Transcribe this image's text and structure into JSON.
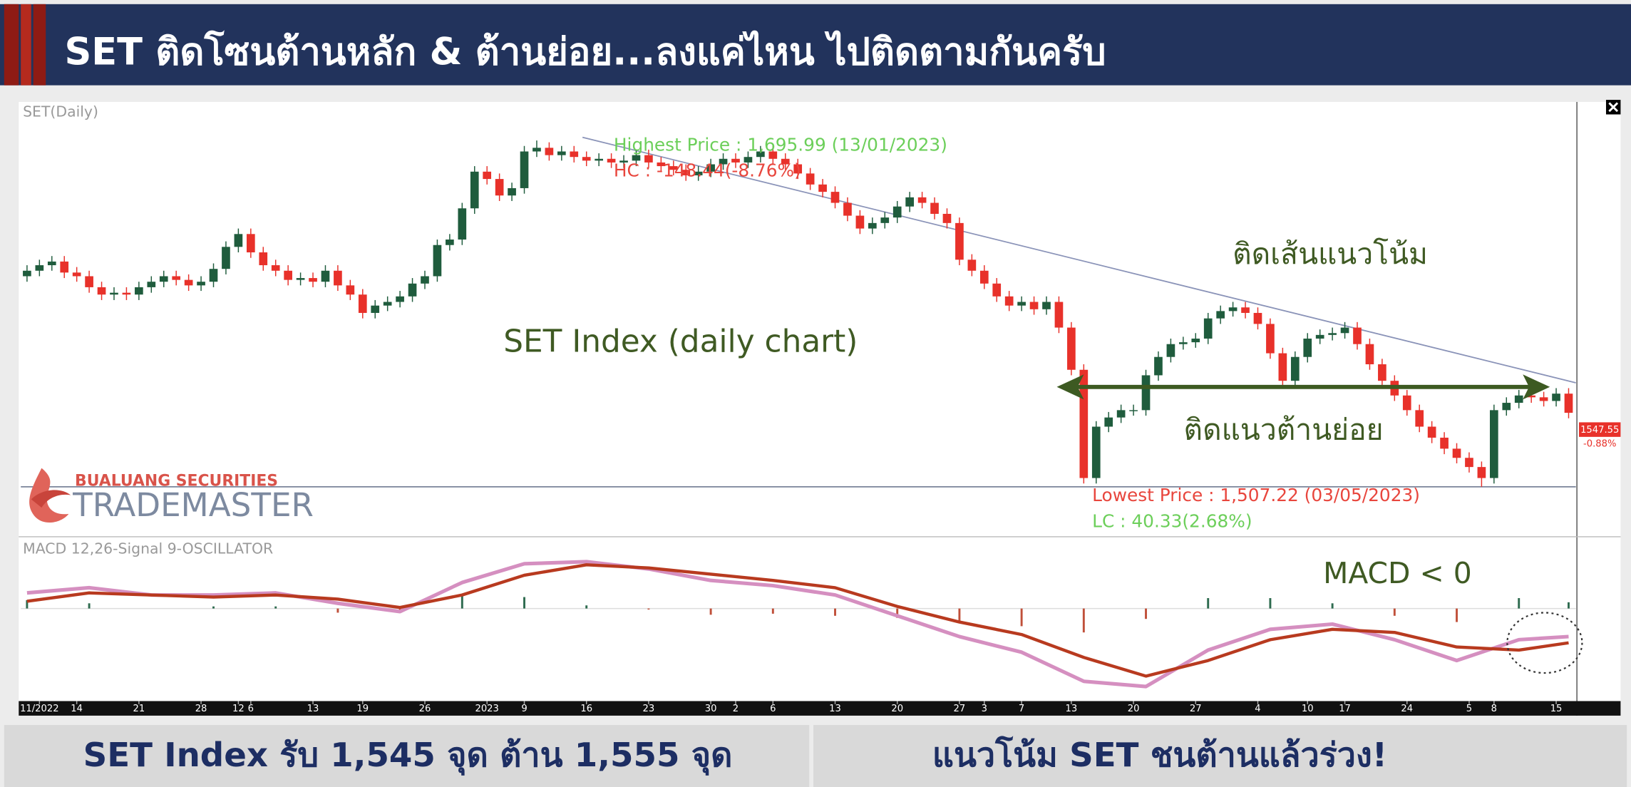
{
  "header": {
    "title": "SET ติดโซนต้านหลัก & ต้านย่อย...ลงแค่ไหน ไปติดตามกันครับ"
  },
  "logo": {
    "company": "BUALUANG SECURITIES",
    "brand": "TRADEMASTER"
  },
  "footer": {
    "left": "SET Index รับ 1,545 จุด ต้าน 1,555 จุด",
    "right": "แนวโน้ม SET ชนต้านแล้วร่วง!"
  },
  "chart_data": [
    {
      "type": "candlestick",
      "title": "SET(Daily)",
      "annotations": [
        "Highest Price : 1,695.99 (13/01/2023)",
        "HC : -148.44(-8.76%)",
        "Lowest Price : 1,507.22 (03/05/2023)",
        "LC : 40.33(2.68%)",
        "ติดเส้นแนวโน้ม",
        "SET Index (daily chart)",
        "ติดแนวต้านย่อย",
        "-0.88%"
      ],
      "last_price": 1547.55,
      "up_color": "#1f5c3d",
      "down_color": "#e8312a",
      "xlim": [
        -0.5,
        124.5
      ],
      "ylim": [
        1480,
        1717
      ],
      "xticks": [
        {
          "value": 1,
          "label": "11/2022"
        },
        {
          "value": 4,
          "label": "14"
        },
        {
          "value": 9,
          "label": "21"
        },
        {
          "value": 14,
          "label": "28"
        },
        {
          "value": 17,
          "label": "12"
        },
        {
          "value": 18,
          "label": "6"
        },
        {
          "value": 23,
          "label": "13"
        },
        {
          "value": 27,
          "label": "19"
        },
        {
          "value": 32,
          "label": "26"
        },
        {
          "value": 37,
          "label": "2023"
        },
        {
          "value": 40,
          "label": "9"
        },
        {
          "value": 45,
          "label": "16"
        },
        {
          "value": 50,
          "label": "23"
        },
        {
          "value": 55,
          "label": "30"
        },
        {
          "value": 57,
          "label": "2"
        },
        {
          "value": 60,
          "label": "6"
        },
        {
          "value": 65,
          "label": "13"
        },
        {
          "value": 70,
          "label": "20"
        },
        {
          "value": 75,
          "label": "27"
        },
        {
          "value": 77,
          "label": "3"
        },
        {
          "value": 80,
          "label": "7"
        },
        {
          "value": 84,
          "label": "13"
        },
        {
          "value": 89,
          "label": "20"
        },
        {
          "value": 94,
          "label": "27"
        },
        {
          "value": 99,
          "label": "4"
        },
        {
          "value": 103,
          "label": "10"
        },
        {
          "value": 106,
          "label": "17"
        },
        {
          "value": 111,
          "label": "24"
        },
        {
          "value": 116,
          "label": "5"
        },
        {
          "value": 118,
          "label": "8"
        },
        {
          "value": 123,
          "label": "15"
        }
      ],
      "open": [
        1622,
        1625,
        1628,
        1630,
        1624,
        1622,
        1616,
        1612,
        1613,
        1612,
        1616,
        1619,
        1622,
        1620,
        1617,
        1619,
        1626,
        1638,
        1645,
        1635,
        1628,
        1625,
        1620,
        1621,
        1619,
        1625,
        1617,
        1612,
        1602,
        1606,
        1608,
        1611,
        1618,
        1622,
        1639,
        1642,
        1659,
        1679,
        1675,
        1666,
        1670,
        1690,
        1692,
        1688,
        1690,
        1687,
        1685,
        1686,
        1684,
        1685,
        1688,
        1684,
        1682,
        1680,
        1677,
        1679,
        1683,
        1686,
        1684,
        1687,
        1690,
        1686,
        1683,
        1678,
        1672,
        1668,
        1662,
        1655,
        1648,
        1651,
        1654,
        1660,
        1665,
        1662,
        1656,
        1651,
        1631,
        1625,
        1618,
        1611,
        1606,
        1608,
        1604,
        1608,
        1594,
        1571,
        1512,
        1540,
        1545,
        1549,
        1549,
        1568,
        1578,
        1585,
        1586,
        1588,
        1599,
        1603,
        1605,
        1602,
        1596,
        1580,
        1565,
        1578,
        1588,
        1590,
        1591,
        1594,
        1585,
        1574,
        1565,
        1557,
        1549,
        1540,
        1534,
        1528,
        1523,
        1518,
        1512,
        1549,
        1553,
        1557,
        1556,
        1554,
        1558
      ],
      "high": [
        1628,
        1631,
        1633,
        1633,
        1627,
        1625,
        1619,
        1616,
        1616,
        1619,
        1622,
        1625,
        1625,
        1623,
        1622,
        1629,
        1641,
        1648,
        1648,
        1638,
        1631,
        1628,
        1624,
        1624,
        1628,
        1628,
        1620,
        1615,
        1609,
        1611,
        1614,
        1621,
        1625,
        1642,
        1645,
        1662,
        1682,
        1682,
        1678,
        1673,
        1693,
        1695.99,
        1695,
        1693,
        1693,
        1690,
        1689,
        1689,
        1688,
        1691,
        1691,
        1687,
        1685,
        1683,
        1682,
        1686,
        1689,
        1689,
        1690,
        1693,
        1693,
        1689,
        1686,
        1681,
        1675,
        1671,
        1665,
        1658,
        1654,
        1657,
        1663,
        1668,
        1668,
        1665,
        1659,
        1654,
        1634,
        1628,
        1621,
        1614,
        1611,
        1611,
        1611,
        1611,
        1597,
        1574,
        1543,
        1548,
        1552,
        1552,
        1571,
        1581,
        1588,
        1589,
        1591,
        1602,
        1606,
        1608,
        1608,
        1605,
        1599,
        1583,
        1581,
        1591,
        1593,
        1594,
        1597,
        1597,
        1588,
        1577,
        1568,
        1560,
        1552,
        1543,
        1537,
        1531,
        1526,
        1521,
        1552,
        1556,
        1560,
        1560,
        1559,
        1561,
        1561
      ],
      "low": [
        1619,
        1622,
        1625,
        1621,
        1619,
        1613,
        1609,
        1609,
        1609,
        1609,
        1613,
        1616,
        1617,
        1614,
        1614,
        1616,
        1623,
        1635,
        1632,
        1625,
        1622,
        1617,
        1617,
        1616,
        1616,
        1614,
        1609,
        1599,
        1599,
        1603,
        1605,
        1608,
        1615,
        1619,
        1636,
        1639,
        1656,
        1672,
        1663,
        1663,
        1667,
        1687,
        1685,
        1685,
        1684,
        1682,
        1682,
        1681,
        1681,
        1682,
        1681,
        1679,
        1677,
        1674,
        1674,
        1676,
        1680,
        1681,
        1681,
        1684,
        1683,
        1680,
        1675,
        1669,
        1665,
        1659,
        1652,
        1645,
        1645,
        1648,
        1651,
        1657,
        1659,
        1653,
        1648,
        1628,
        1622,
        1615,
        1608,
        1603,
        1603,
        1601,
        1601,
        1591,
        1568,
        1509,
        1509,
        1537,
        1542,
        1546,
        1546,
        1565,
        1575,
        1582,
        1583,
        1585,
        1596,
        1600,
        1599,
        1593,
        1577,
        1562,
        1562,
        1575,
        1585,
        1587,
        1588,
        1582,
        1571,
        1562,
        1554,
        1546,
        1537,
        1531,
        1525,
        1520,
        1515,
        1507.22,
        1509,
        1546,
        1550,
        1553,
        1551,
        1551,
        1544.55
      ],
      "close": [
        1625,
        1628,
        1630,
        1624,
        1622,
        1616,
        1612,
        1613,
        1612,
        1616,
        1619,
        1622,
        1620,
        1617,
        1619,
        1626,
        1638,
        1645,
        1635,
        1628,
        1625,
        1620,
        1621,
        1619,
        1625,
        1617,
        1612,
        1602,
        1606,
        1608,
        1611,
        1618,
        1622,
        1639,
        1642,
        1659,
        1679,
        1675,
        1666,
        1670,
        1690,
        1692,
        1688,
        1690,
        1687,
        1685,
        1686,
        1684,
        1685,
        1688,
        1684,
        1682,
        1680,
        1677,
        1679,
        1683,
        1686,
        1684,
        1687,
        1690,
        1686,
        1683,
        1678,
        1672,
        1668,
        1662,
        1655,
        1648,
        1651,
        1654,
        1660,
        1665,
        1662,
        1656,
        1651,
        1631,
        1625,
        1618,
        1611,
        1606,
        1608,
        1604,
        1608,
        1594,
        1571,
        1512,
        1540,
        1545,
        1549,
        1549,
        1568,
        1578,
        1585,
        1586,
        1588,
        1599,
        1603,
        1605,
        1602,
        1596,
        1580,
        1565,
        1578,
        1588,
        1590,
        1591,
        1594,
        1585,
        1574,
        1565,
        1557,
        1549,
        1540,
        1534,
        1528,
        1523,
        1518,
        1512,
        1549,
        1553,
        1557,
        1556,
        1554,
        1558,
        1547.55
      ]
    },
    {
      "type": "line",
      "title": "MACD 12,26-Signal 9-OSCILLATOR",
      "annotations": [
        "MACD < 0"
      ],
      "xlim": [
        -0.5,
        124.5
      ],
      "ylim": [
        -17.4,
        13
      ],
      "x": [
        0,
        5,
        10,
        15,
        20,
        25,
        30,
        35,
        40,
        45,
        50,
        55,
        60,
        65,
        70,
        75,
        80,
        85,
        90,
        95,
        100,
        105,
        110,
        115,
        120,
        124
      ],
      "series": [
        {
          "color": "#d58fc0",
          "values": [
            3,
            4,
            2.6,
            2.6,
            3,
            1,
            -0.6,
            5,
            8.6,
            9,
            7.6,
            5.4,
            4.4,
            2.6,
            -1.4,
            -5.4,
            -8.4,
            -14,
            -15,
            -8,
            -4,
            -3,
            -6,
            -10,
            -6,
            -5.4
          ]
        },
        {
          "color": "#b83a1f",
          "values": [
            1.4,
            3,
            2.6,
            2.2,
            2.6,
            1.8,
            0.2,
            2.6,
            6.4,
            8.4,
            7.8,
            6.6,
            5.4,
            4,
            0.4,
            -2.6,
            -5,
            -9.4,
            -13,
            -10,
            -6,
            -4,
            -4.6,
            -7.4,
            -8,
            -6.6
          ]
        }
      ],
      "bars": {
        "up_color": "#2e6b4f",
        "down_color": "#c0503a",
        "values": [
          1.6,
          1,
          0,
          0.4,
          0.4,
          -0.8,
          -0.8,
          2.4,
          2.2,
          0.6,
          -0.2,
          -1.2,
          -1,
          -1.4,
          -1.8,
          -2.8,
          -3.4,
          -4.6,
          -2,
          2,
          2,
          1,
          -1.4,
          -2.6,
          2,
          1.2
        ]
      }
    }
  ]
}
